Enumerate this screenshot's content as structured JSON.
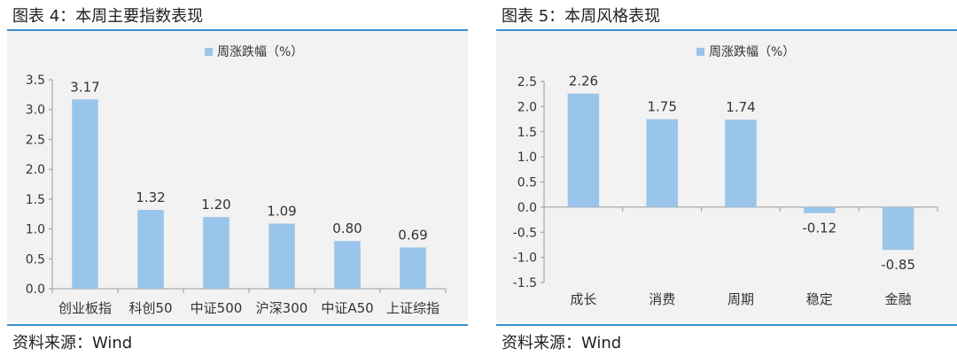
{
  "colors": {
    "bar": "#9ac5ea",
    "rule": "#3b8fd0",
    "panel_bg": "#f2f2f2"
  },
  "left": {
    "title": "图表 4：本周主要指数表现",
    "source": "资料来源：Wind",
    "chart_data": {
      "type": "bar",
      "categories": [
        "创业板指",
        "科创50",
        "中证500",
        "沪深300",
        "中证A50",
        "上证综指"
      ],
      "series": [
        {
          "name": "周涨跌幅（%）",
          "values": [
            3.17,
            1.32,
            1.2,
            1.09,
            0.8,
            0.69
          ]
        }
      ],
      "value_labels": [
        "3.17",
        "1.32",
        "1.20",
        "1.09",
        "0.80",
        "0.69"
      ],
      "yticks": [
        "3.5",
        "3.0",
        "2.5",
        "2.0",
        "1.5",
        "1.0",
        "0.5",
        "0.0"
      ],
      "ylim": [
        0,
        3.5
      ],
      "legend": "top-center",
      "grid": false
    }
  },
  "right": {
    "title": "图表 5：本周风格表现",
    "source": "资料来源：Wind",
    "chart_data": {
      "type": "bar",
      "categories": [
        "成长",
        "消费",
        "周期",
        "稳定",
        "金融"
      ],
      "series": [
        {
          "name": "周涨跌幅（%）",
          "values": [
            2.26,
            1.75,
            1.74,
            -0.12,
            -0.85
          ]
        }
      ],
      "value_labels": [
        "2.26",
        "1.75",
        "1.74",
        "-0.12",
        "-0.85"
      ],
      "yticks": [
        "2.5",
        "2.0",
        "1.5",
        "1.0",
        "0.5",
        "0.0",
        "-0.5",
        "-1.0",
        "-1.5"
      ],
      "ylim": [
        -1.5,
        2.5
      ],
      "legend": "top-center",
      "grid": false
    }
  }
}
